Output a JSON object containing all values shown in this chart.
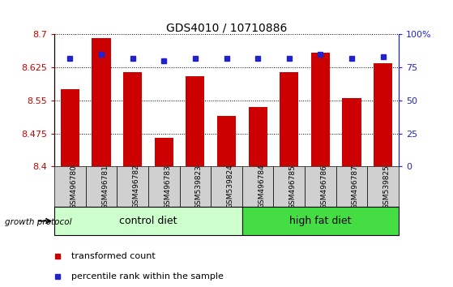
{
  "title": "GDS4010 / 10710886",
  "samples": [
    "GSM496780",
    "GSM496781",
    "GSM496782",
    "GSM496783",
    "GSM539823",
    "GSM539824",
    "GSM496784",
    "GSM496785",
    "GSM496786",
    "GSM496787",
    "GSM539825"
  ],
  "transformed_count": [
    8.575,
    8.692,
    8.615,
    8.465,
    8.605,
    8.515,
    8.535,
    8.615,
    8.658,
    8.555,
    8.635
  ],
  "percentile_rank": [
    82,
    85,
    82,
    80,
    82,
    82,
    82,
    82,
    85,
    82,
    83
  ],
  "bar_color": "#cc0000",
  "dot_color": "#2222cc",
  "ymin": 8.4,
  "ymax": 8.7,
  "yticks": [
    8.4,
    8.475,
    8.55,
    8.625,
    8.7
  ],
  "ytick_labels": [
    "8.4",
    "8.475",
    "8.55",
    "8.625",
    "8.7"
  ],
  "right_yticks": [
    0,
    25,
    50,
    75,
    100
  ],
  "right_ytick_labels": [
    "0",
    "25",
    "50",
    "75",
    "100%"
  ],
  "groups": [
    {
      "label": "control diet",
      "start": 0,
      "end": 6,
      "color": "#ccffcc"
    },
    {
      "label": "high fat diet",
      "start": 6,
      "end": 11,
      "color": "#44dd44"
    }
  ],
  "group_label_prefix": "growth protocol",
  "legend_items": [
    {
      "color": "#cc0000",
      "label": "transformed count"
    },
    {
      "color": "#2222cc",
      "label": "percentile rank within the sample"
    }
  ],
  "grid_color": "#000000",
  "xlabel_bg": "#d0d0d0",
  "plot_bg": "#ffffff"
}
